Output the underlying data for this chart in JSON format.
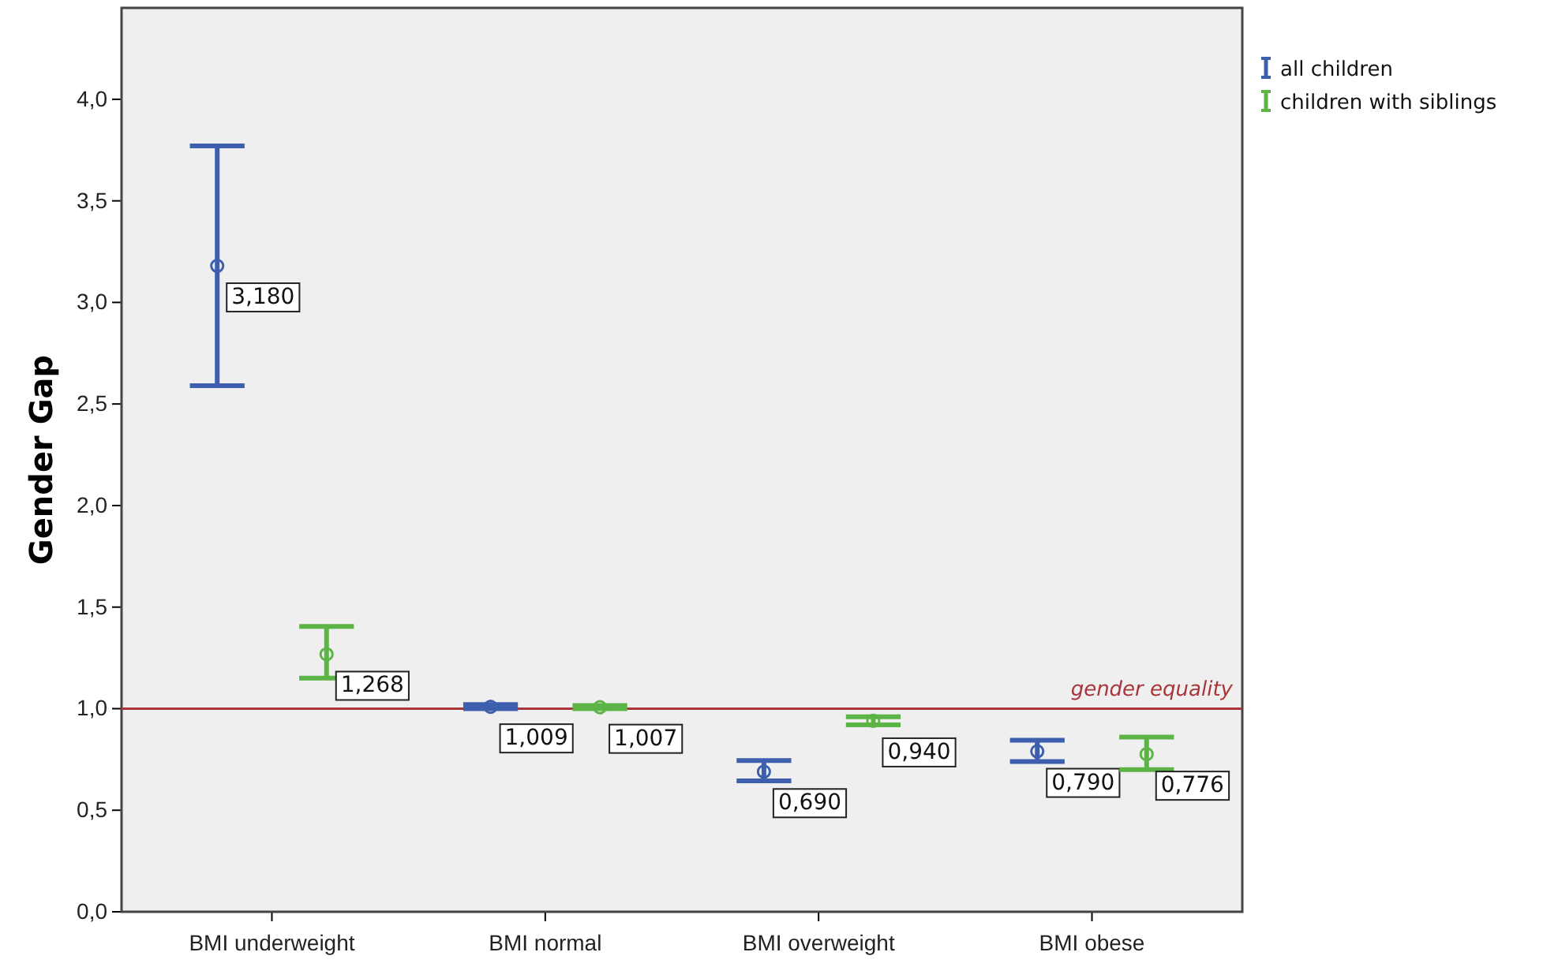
{
  "chart_data": {
    "type": "scatter",
    "ylabel": "Gender Gap",
    "categories": [
      "BMI underweight",
      "BMI normal",
      "BMI overweight",
      "BMI obese"
    ],
    "series": [
      {
        "name": "all children",
        "color": "#3d5fae",
        "values": [
          3.18,
          1.009,
          0.69,
          0.79
        ],
        "value_labels": [
          "3,180",
          "1,009",
          "0,690",
          "0,790"
        ],
        "errors": [
          [
            2.59,
            3.77
          ],
          [
            1.0,
            1.02
          ],
          [
            0.645,
            0.745
          ],
          [
            0.74,
            0.845
          ]
        ]
      },
      {
        "name": "children with siblings",
        "color": "#5cb346",
        "values": [
          1.268,
          1.007,
          0.94,
          0.776
        ],
        "value_labels": [
          "1,268",
          "1,007",
          "0,940",
          "0,776"
        ],
        "errors": [
          [
            1.15,
            1.405
          ],
          [
            1.0,
            1.015
          ],
          [
            0.92,
            0.96
          ],
          [
            0.7,
            0.86
          ]
        ]
      }
    ],
    "ylim": [
      0,
      4.45
    ],
    "yticks": [
      {
        "value": 0,
        "label": "0,0"
      },
      {
        "value": 0.5,
        "label": "0,5"
      },
      {
        "value": 1,
        "label": "1,0"
      },
      {
        "value": 1.5,
        "label": "1,5"
      },
      {
        "value": 2,
        "label": "2,0"
      },
      {
        "value": 2.5,
        "label": "2,5"
      },
      {
        "value": 3,
        "label": "3,0"
      },
      {
        "value": 3.5,
        "label": "3,5"
      },
      {
        "value": 4,
        "label": "4,0"
      }
    ],
    "ref_lines": [
      {
        "axis": "y",
        "value": 1,
        "label": "gender equality",
        "color": "#a8353a"
      }
    ],
    "marker": "circle",
    "legend": "top right",
    "grid": false
  }
}
